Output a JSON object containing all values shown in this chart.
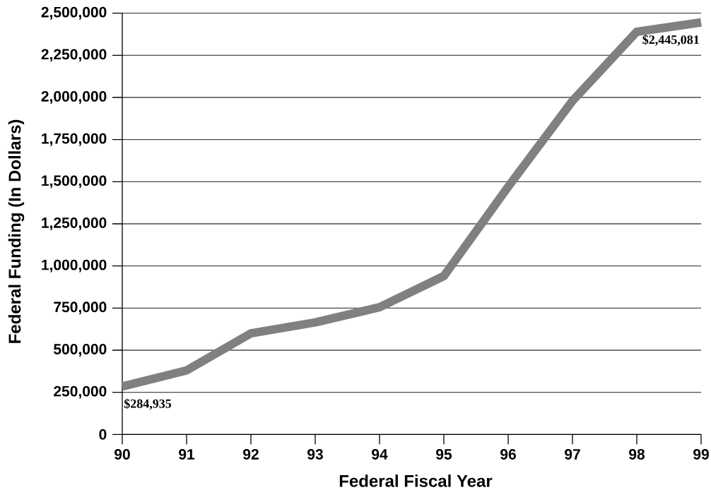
{
  "chart_data": {
    "type": "line",
    "xlabel": "Federal Fiscal Year",
    "ylabel": "Federal Funding (In Dollars)",
    "categories": [
      "90",
      "91",
      "92",
      "93",
      "94",
      "95",
      "96",
      "97",
      "98",
      "99"
    ],
    "series": [
      {
        "color": "#808080",
        "values": [
          284935,
          380000,
          600000,
          665000,
          755000,
          940000,
          1470000,
          1980000,
          2390000,
          2445081
        ],
        "value_labels": [
          "$284,935",
          null,
          null,
          null,
          null,
          null,
          null,
          null,
          null,
          "$2,445,081"
        ]
      }
    ],
    "ylim": [
      0,
      2500000
    ],
    "yticks": [
      0,
      {
        "value": 250000,
        "label": "250,000"
      },
      {
        "value": 500000,
        "label": "500,000"
      },
      {
        "value": 750000,
        "label": "750,000"
      },
      {
        "value": 1000000,
        "label": "1,000,000"
      },
      {
        "value": 1250000,
        "label": "1,250,000"
      },
      {
        "value": 1500000,
        "label": "1,500,000"
      },
      {
        "value": 1750000,
        "label": "1,750,000"
      },
      {
        "value": 2000000,
        "label": "2,000,000"
      },
      {
        "value": 2250000,
        "label": "2,250,000"
      },
      {
        "value": 2500000,
        "label": "2,500,000"
      }
    ],
    "grid": "y",
    "marker": "none",
    "line_style": "solid"
  }
}
